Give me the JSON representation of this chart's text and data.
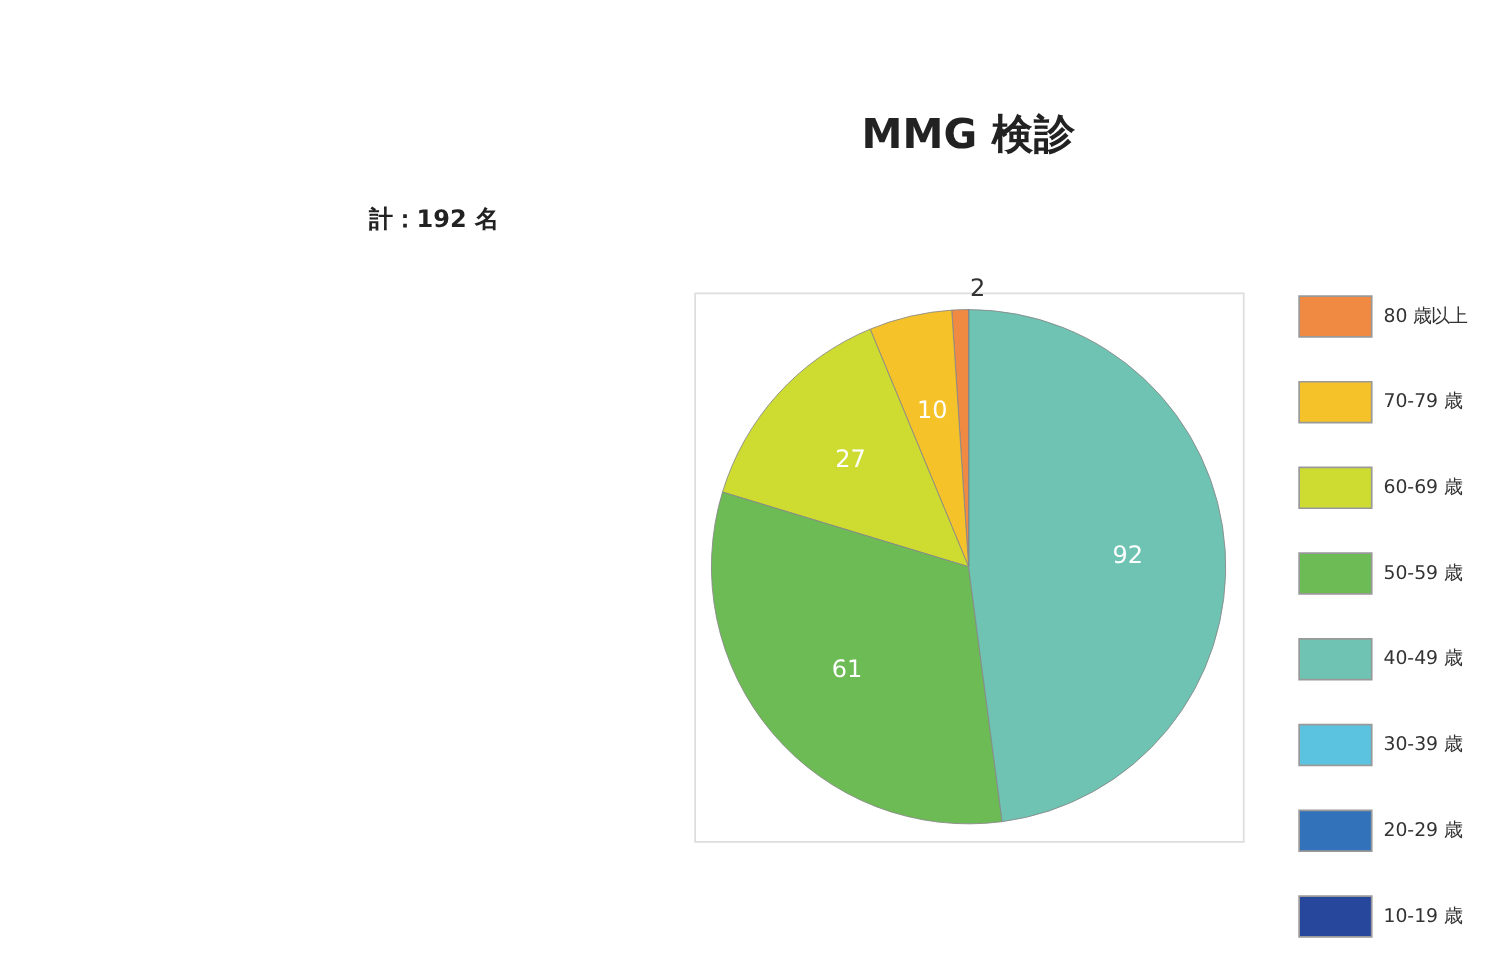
{
  "chart_data": {
    "type": "pie",
    "title": "MMG 検診",
    "annotations": [
      "計：192 名"
    ],
    "categories": [
      "80 歳以上",
      "70-79 歳",
      "60-69 歳",
      "50-59 歳",
      "40-49 歳",
      "30-39 歳",
      "20-29 歳",
      "10-19 歳"
    ],
    "values": [
      2,
      10,
      27,
      61,
      92,
      0,
      0,
      0
    ],
    "value_labels": [
      "2",
      "10",
      "27",
      "61",
      "92",
      null,
      null,
      null
    ],
    "colors": [
      "#f08a43",
      "#f5c22a",
      "#cedc32",
      "#6cbb55",
      "#6fc3b3",
      "#5bc3e0",
      "#3272bb",
      "#27479c"
    ],
    "legend": "right"
  }
}
